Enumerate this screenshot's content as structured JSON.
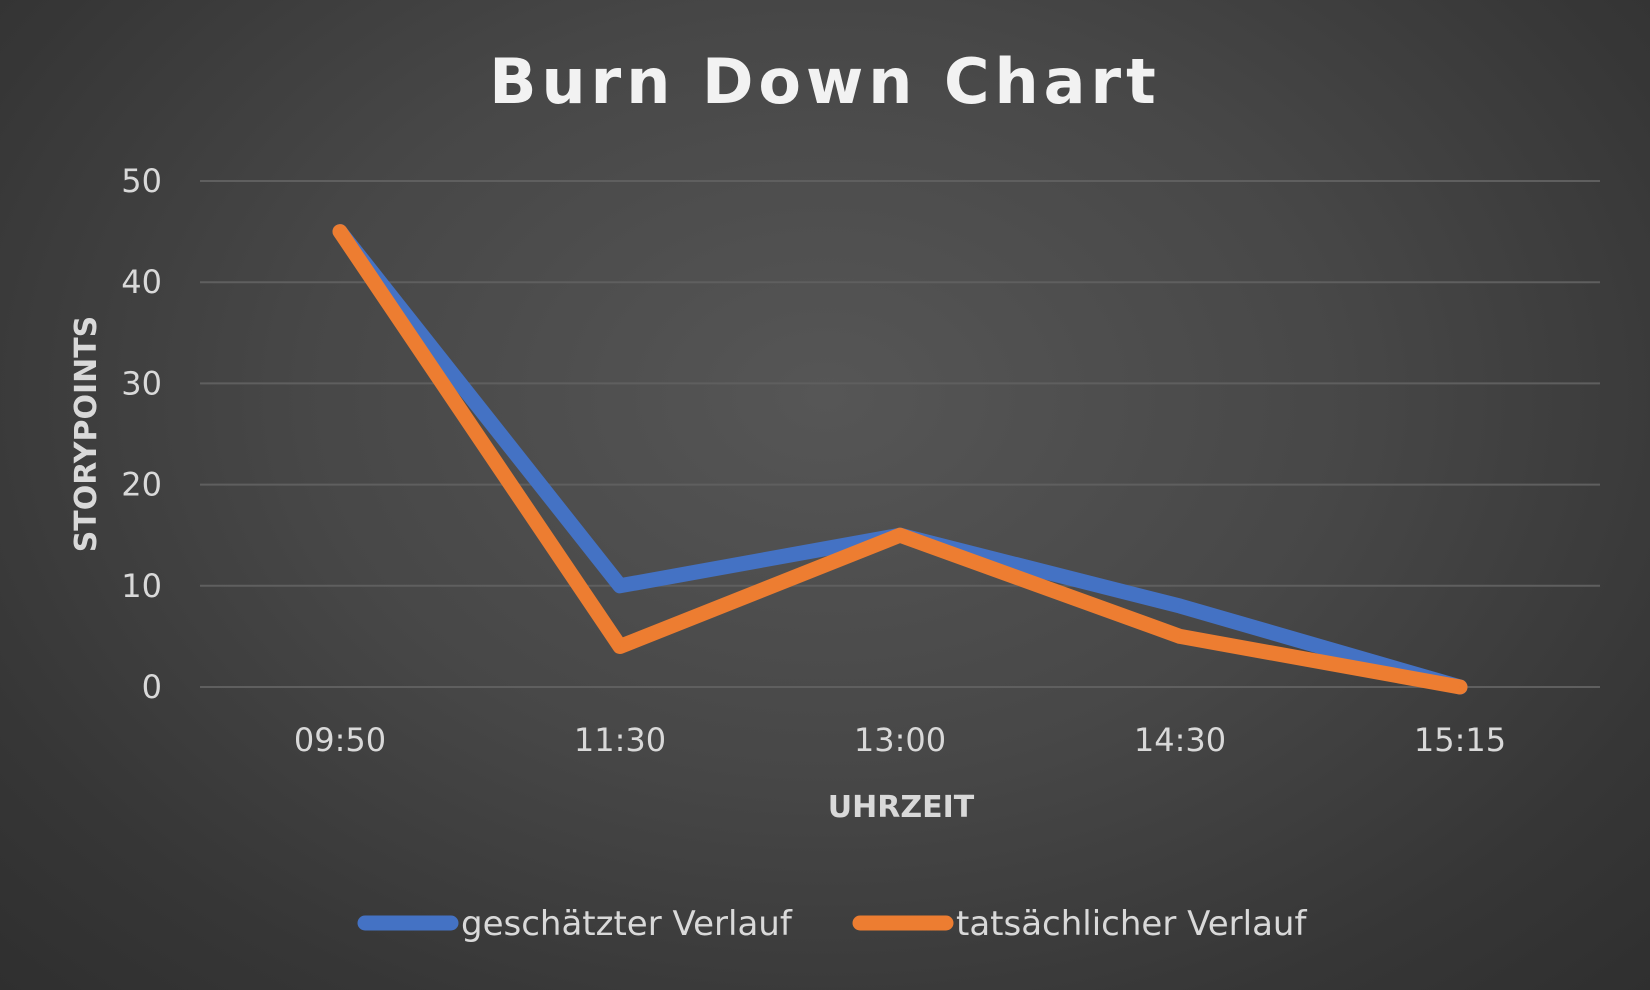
{
  "chart_data": {
    "type": "line",
    "title": "Burn Down Chart",
    "xlabel": "UHRZEIT",
    "ylabel": "STORYPOINTS",
    "categories": [
      "09:50",
      "11:30",
      "13:00",
      "14:30",
      "15:15"
    ],
    "ylim": [
      0,
      50
    ],
    "yticks": [
      0,
      10,
      20,
      30,
      40,
      50
    ],
    "grid": true,
    "legend_position": "bottom",
    "series": [
      {
        "name": "geschätzter Verlauf",
        "color": "#4472C4",
        "values": [
          45,
          10,
          15,
          8,
          0
        ]
      },
      {
        "name": "tatsächlicher Verlauf",
        "color": "#ED7D31",
        "values": [
          45,
          4,
          15,
          5,
          0
        ]
      }
    ]
  }
}
